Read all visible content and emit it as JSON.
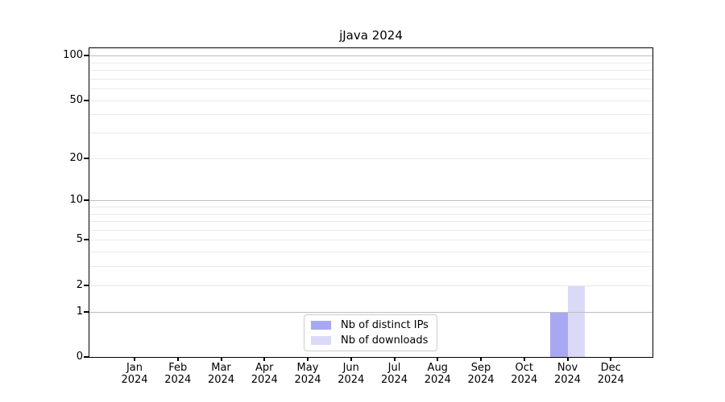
{
  "chart_data": {
    "type": "bar",
    "title": "jJava 2024",
    "categories": [
      "Jan",
      "Feb",
      "Mar",
      "Apr",
      "May",
      "Jun",
      "Jul",
      "Aug",
      "Sep",
      "Oct",
      "Nov",
      "Dec"
    ],
    "category_year": "2024",
    "series": [
      {
        "name": "Nb of distinct IPs",
        "color": "#a8a8f2",
        "values": [
          0,
          0,
          0,
          0,
          0,
          0,
          0,
          0,
          0,
          0,
          1,
          0
        ]
      },
      {
        "name": "Nb of downloads",
        "color": "#dadaf8",
        "values": [
          0,
          0,
          0,
          0,
          0,
          0,
          0,
          0,
          0,
          0,
          2,
          0
        ]
      }
    ],
    "yscale": "log10(1+v)",
    "ylim": [
      0,
      112
    ],
    "yticks": [
      0,
      1,
      2,
      5,
      10,
      20,
      50,
      100
    ],
    "grid_major_lines": [
      1,
      10,
      100
    ],
    "grid_minor_lines": [
      2,
      3,
      4,
      5,
      6,
      7,
      8,
      9,
      20,
      30,
      40,
      50,
      60,
      70,
      80,
      90
    ],
    "legend_position": "lower center",
    "grid": true,
    "colors": {
      "grid_major": "#bdbdbd",
      "grid_minor": "#e9e9e9",
      "axis": "#000000",
      "text": "#000000",
      "background": "#ffffff",
      "legend_border": "#cccccc"
    }
  }
}
